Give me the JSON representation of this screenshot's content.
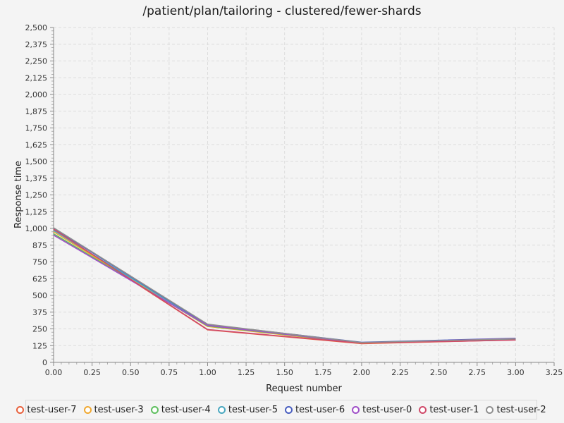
{
  "chart_data": {
    "type": "line",
    "title": "/patient/plan/tailoring - clustered/fewer-shards",
    "xlabel": "Request number",
    "ylabel": "Response time",
    "xlim": [
      0,
      3.25
    ],
    "ylim": [
      0,
      2500
    ],
    "xticks": [
      0,
      0.25,
      0.5,
      0.75,
      1,
      1.25,
      1.5,
      1.75,
      2,
      2.25,
      2.5,
      2.75,
      3,
      3.25
    ],
    "xtick_labels": [
      "0.00",
      "0.25",
      "0.50",
      "0.75",
      "1.00",
      "1.25",
      "1.50",
      "1.75",
      "2.00",
      "2.25",
      "2.50",
      "2.75",
      "3.00",
      "3.25"
    ],
    "yticks": [
      0,
      125,
      250,
      375,
      500,
      625,
      750,
      875,
      1000,
      1125,
      1250,
      1375,
      1500,
      1625,
      1750,
      1875,
      2000,
      2125,
      2250,
      2375,
      2500
    ],
    "ytick_labels": [
      "0",
      "125",
      "250",
      "375",
      "500",
      "625",
      "750",
      "875",
      "1,000",
      "1,125",
      "1,250",
      "1,375",
      "1,500",
      "1,625",
      "1,750",
      "1,875",
      "2,000",
      "2,125",
      "2,250",
      "2,375",
      "2,500"
    ],
    "grid": true,
    "legend_position": "bottom",
    "x": [
      0,
      1,
      2,
      3
    ],
    "series": [
      {
        "name": "test-user-7",
        "color": "#e8603c",
        "values": [
          990,
          243,
          140,
          168
        ]
      },
      {
        "name": "test-user-3",
        "color": "#f0a830",
        "values": [
          975,
          268,
          142,
          170
        ]
      },
      {
        "name": "test-user-4",
        "color": "#5fbf5f",
        "values": [
          960,
          272,
          145,
          172
        ]
      },
      {
        "name": "test-user-5",
        "color": "#4aa8c0",
        "values": [
          985,
          278,
          147,
          175
        ]
      },
      {
        "name": "test-user-6",
        "color": "#4a5fc0",
        "values": [
          1000,
          282,
          150,
          180
        ]
      },
      {
        "name": "test-user-0",
        "color": "#a050c8",
        "values": [
          950,
          276,
          146,
          178
        ]
      },
      {
        "name": "test-user-1",
        "color": "#d04a6a",
        "values": [
          995,
          245,
          143,
          167
        ]
      },
      {
        "name": "test-user-2",
        "color": "#909090",
        "values": [
          1005,
          285,
          148,
          176
        ]
      }
    ]
  }
}
